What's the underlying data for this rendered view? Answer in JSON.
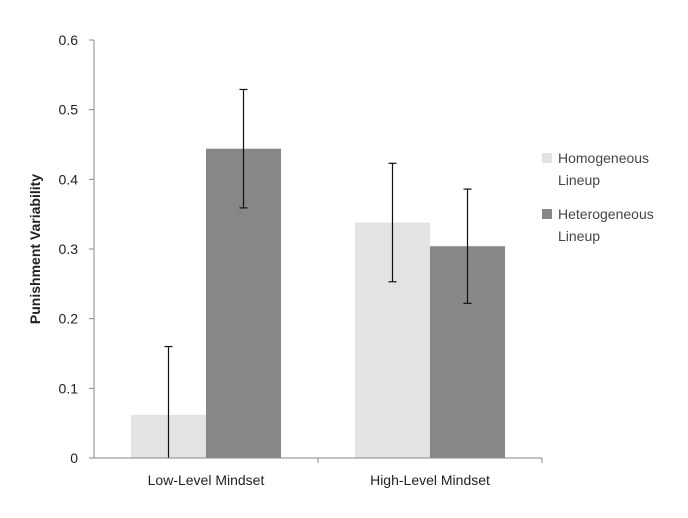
{
  "chart_data": {
    "type": "bar",
    "title": "",
    "xlabel": "",
    "ylabel": "Punishment Variability",
    "ylim": [
      0,
      0.6
    ],
    "yticks": [
      "0",
      "0.1",
      "0.2",
      "0.3",
      "0.4",
      "0.5",
      "0.6"
    ],
    "categories": [
      "Low-Level Mindset",
      "High-Level Mindset"
    ],
    "grid": false,
    "legend_position": "right",
    "series": [
      {
        "name": "Homogeneous Lineup",
        "legend_lines": [
          "Homogeneous",
          "Lineup"
        ],
        "color": "#e3e3e3",
        "values": [
          0.062,
          0.338
        ],
        "error": [
          0.098,
          0.085
        ]
      },
      {
        "name": "Heterogeneous Lineup",
        "legend_lines": [
          "Heterogeneous",
          "Lineup"
        ],
        "color": "#878787",
        "values": [
          0.444,
          0.304
        ],
        "error": [
          0.085,
          0.082
        ]
      }
    ]
  }
}
